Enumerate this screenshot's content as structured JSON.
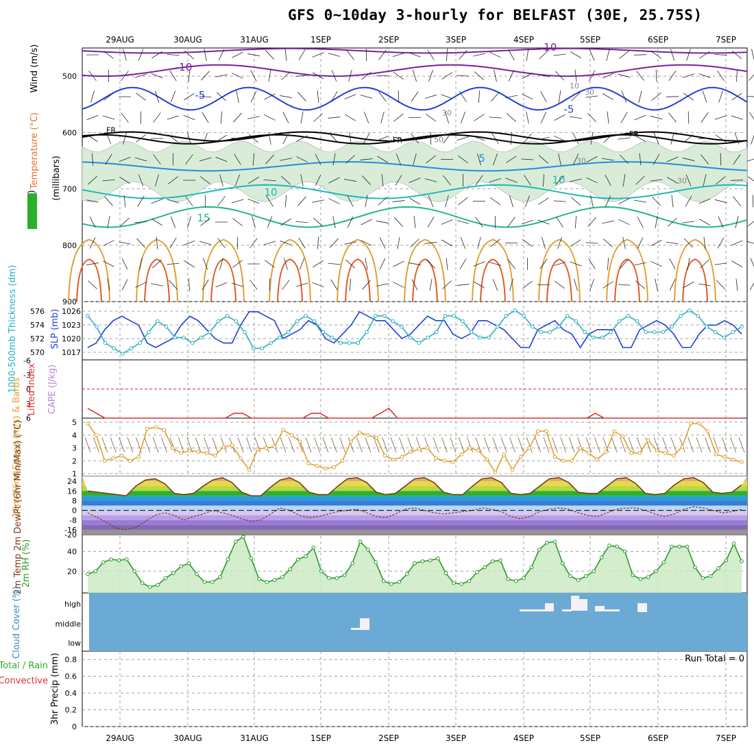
{
  "title": "GFS 0~10day 3-hourly for BELFAST (30E, 25.75S)",
  "date_labels": [
    "29AUG",
    "30AUG",
    "31AUG",
    "1SEP",
    "2SEP",
    "3SEP",
    "4SEP",
    "5SEP",
    "6SEP",
    "7SEP"
  ],
  "colors": {
    "grid": "#a0a0a0",
    "rh_fill": "#d8ecd8",
    "rh_dark": "#9aa69a",
    "temp_purple": "#7a1fa2",
    "temp_blue": "#1f3fd6",
    "temp_lightblue": "#1f8fe0",
    "temp_teal": "#1fb8b8",
    "temp_green": "#1fb885",
    "temp_orange": "#e0a030",
    "temp_red": "#e05a20",
    "slp": "#1f3fd6",
    "thickness": "#2ab0c0",
    "lifted": "#e03030",
    "cape": "#c080e0",
    "wind10": "#e0a030",
    "rh2m": "#2a9a2a",
    "cloud_bg": "#6aaad4",
    "cloud_bar": "#f4f0f8",
    "precip_total": "#2ab02a",
    "precip_conv": "#e03030"
  },
  "chart_data": [
    {
      "type": "heatmap",
      "panel": "upper-air",
      "ylabel_wind": "Wind (m/s)",
      "ylabel_temp": "Temperature (°C)",
      "ylabel_rh": "RH (%)",
      "ylabel_units": "(millibars)",
      "y_ticks": [
        500,
        600,
        700,
        800,
        900
      ],
      "ylim": [
        900,
        450
      ],
      "isotherm_labels": [
        "-10",
        "-10",
        "-5",
        "-5",
        "FR",
        "FR",
        "FR",
        "5",
        "10",
        "10",
        "15"
      ],
      "rh_labels": [
        "10",
        "30",
        "30",
        "50",
        "30",
        "30"
      ]
    },
    {
      "type": "line",
      "panel": "slp-thickness",
      "ylabel_left": "1000-500mb Thickness (dm)",
      "ylabel_right": "SLP (mb)",
      "left_ticks": [
        "576",
        "574",
        "572",
        "570"
      ],
      "right_ticks": [
        "1026",
        "1023",
        "1020",
        "1017"
      ],
      "series": [
        {
          "name": "SLP (mb)",
          "values": [
            1018,
            1019,
            1022,
            1024,
            1025,
            1024,
            1023,
            1019,
            1018,
            1019,
            1020,
            1023,
            1025,
            1024,
            1022,
            1020,
            1019,
            1019,
            1023,
            1026,
            1026,
            1025,
            1024,
            1020,
            1021,
            1022,
            1024,
            1023,
            1020,
            1019,
            1021,
            1023,
            1026,
            1025,
            1024,
            1024,
            1022,
            1020,
            1021,
            1023,
            1025,
            1024,
            1024,
            1021,
            1020,
            1021,
            1024,
            1024,
            1023,
            1022,
            1020,
            1018,
            1018,
            1022,
            1023,
            1024,
            1022,
            1021,
            1018,
            1021,
            1022,
            1022,
            1022,
            1018,
            1018,
            1022,
            1023,
            1024,
            1023,
            1021,
            1018,
            1018,
            1021,
            1023,
            1023,
            1024,
            1023,
            1021
          ]
        },
        {
          "name": "1000-500mb Thickness (dm)",
          "values": [
            575,
            573,
            570,
            569,
            568,
            569,
            570,
            572,
            574,
            573,
            571,
            571,
            570,
            571,
            572,
            574,
            575,
            574,
            572,
            569,
            569,
            570,
            571,
            572,
            574,
            575,
            574,
            572,
            571,
            570,
            570,
            570,
            572,
            575,
            575,
            574,
            573,
            571,
            570,
            571,
            572,
            575,
            575,
            574,
            572,
            571,
            571,
            573,
            575,
            576,
            575,
            573,
            572,
            572,
            573,
            575,
            574,
            572,
            571,
            571,
            572,
            574,
            575,
            574,
            572,
            572,
            572,
            573,
            575,
            576,
            575,
            573,
            572,
            571,
            572,
            573
          ]
        }
      ]
    },
    {
      "type": "line",
      "panel": "lifted-cape",
      "ylabel_left": "Lifted Index",
      "ylabel_right": "CAPE (J/kg)",
      "y_ticks": [
        "-6",
        "-3",
        "0",
        "3",
        "6"
      ],
      "ylim": [
        -6,
        6
      ],
      "series": [
        {
          "name": "Lifted Index",
          "values": [
            4,
            5,
            6,
            6,
            6,
            6,
            6,
            6,
            6,
            6,
            6,
            6,
            6,
            6,
            6,
            6,
            6,
            5,
            5,
            6,
            6,
            6,
            6,
            6,
            6,
            6,
            5,
            5,
            6,
            6,
            6,
            6,
            6,
            6,
            5,
            4,
            6,
            6,
            6,
            6,
            6,
            6,
            6,
            6,
            6,
            6,
            6,
            6,
            6,
            6,
            6,
            6,
            6,
            6,
            6,
            6,
            6,
            6,
            6,
            5,
            6,
            6,
            6,
            6,
            6,
            6,
            6,
            6,
            6,
            6,
            6,
            6,
            6,
            6,
            6,
            6,
            6
          ]
        }
      ]
    },
    {
      "type": "line",
      "panel": "wind10m",
      "ylabel": "10m Wind Speed (m/s) & Barbs",
      "y_ticks": [
        "5",
        "4",
        "3",
        "2",
        "1"
      ],
      "ylim": [
        1,
        5
      ],
      "series": [
        {
          "name": "10m Wind Speed",
          "values": [
            4.9,
            4.0,
            2.0,
            2.2,
            2.4,
            2.0,
            2.3,
            4.5,
            4.6,
            4.4,
            3.0,
            2.6,
            2.8,
            2.7,
            2.6,
            2.4,
            3.1,
            3.2,
            2.2,
            1.3,
            2.9,
            3.0,
            3.1,
            4.4,
            4.0,
            3.5,
            1.8,
            1.6,
            1.4,
            1.5,
            2.0,
            3.5,
            4.2,
            4.0,
            3.8,
            2.4,
            2.1,
            2.3,
            2.7,
            2.9,
            3.0,
            2.2,
            2.0,
            1.9,
            2.5,
            3.0,
            2.8,
            2.1,
            1.1,
            2.5,
            1.3,
            2.3,
            3.0,
            4.3,
            4.3,
            2.3,
            2.0,
            2.0,
            3.0,
            2.6,
            2.1,
            2.7,
            4.3,
            3.9,
            2.6,
            2.6,
            3.6,
            2.8,
            2.6,
            2.4,
            3.1,
            4.9,
            4.9,
            4.3,
            2.5,
            2.3,
            2.1,
            1.9
          ]
        }
      ]
    },
    {
      "type": "area",
      "panel": "temp2m",
      "ylabel": "2m Temp 2m DewPt (6hr Min/Max) (°C)",
      "y_ticks": [
        "24",
        "16",
        "8",
        "0",
        "-8",
        "-16",
        "-20"
      ],
      "ylim": [
        -20,
        28
      ],
      "series": [
        {
          "name": "2m Temp",
          "values": [
            16,
            15,
            14,
            13,
            12,
            20,
            25,
            26,
            22,
            14,
            13,
            14,
            20,
            25,
            27,
            23,
            15,
            12,
            12,
            19,
            25,
            27,
            23,
            15,
            13,
            13,
            20,
            26,
            27,
            23,
            15,
            13,
            14,
            20,
            26,
            27,
            23,
            15,
            13,
            13,
            20,
            26,
            27,
            23,
            14,
            13,
            14,
            20,
            26,
            27,
            23,
            15,
            14,
            14,
            20,
            26,
            27,
            22,
            14,
            13,
            14,
            21,
            26,
            27,
            23,
            15,
            14,
            15,
            21
          ]
        },
        {
          "name": "2m DewPt",
          "values": [
            -2,
            -6,
            -10,
            -15,
            -16,
            -14,
            -9,
            -4,
            -2,
            -4,
            -8,
            -5,
            -3,
            0,
            -2,
            -4,
            -7,
            -9,
            -8,
            -3,
            2,
            0,
            -4,
            -6,
            -5,
            -3,
            -1,
            0,
            1,
            -2,
            -5,
            -6,
            -3,
            1,
            2,
            0,
            -2,
            -3,
            -2,
            -1,
            0,
            2,
            1,
            -1,
            -5,
            -7,
            -5,
            -1,
            1,
            2,
            1,
            -2,
            -4,
            -5,
            -2,
            1,
            2,
            2,
            0,
            -3,
            -5,
            -3,
            1,
            3,
            2,
            0,
            -2,
            -1,
            1
          ]
        }
      ]
    },
    {
      "type": "area",
      "panel": "rh2m",
      "ylabel": "2m RH (%)",
      "y_ticks": [
        "40",
        "20"
      ],
      "ylim": [
        0,
        55
      ],
      "series": [
        {
          "name": "2m RH",
          "values": [
            17,
            20,
            29,
            32,
            31,
            32,
            20,
            8,
            4,
            6,
            13,
            18,
            25,
            28,
            17,
            9,
            9,
            14,
            32,
            50,
            55,
            33,
            12,
            9,
            11,
            14,
            22,
            32,
            35,
            44,
            20,
            13,
            13,
            16,
            28,
            50,
            42,
            29,
            10,
            7,
            9,
            17,
            28,
            30,
            31,
            33,
            18,
            8,
            7,
            10,
            19,
            24,
            30,
            31,
            12,
            10,
            13,
            24,
            42,
            49,
            50,
            28,
            15,
            11,
            15,
            20,
            34,
            46,
            45,
            40,
            16,
            12,
            14,
            20,
            29,
            45,
            45,
            45,
            24,
            13,
            15,
            23,
            31,
            48,
            30
          ]
        }
      ]
    },
    {
      "type": "bar",
      "panel": "cloud",
      "ylabel": "Cloud Cover (%)",
      "y_ticks": [
        "high",
        "middle",
        "low"
      ],
      "layers": [
        "high",
        "middle",
        "low"
      ]
    },
    {
      "type": "bar",
      "panel": "precip",
      "ylabel_total": "Total / Rain",
      "ylabel_conv": "Convective",
      "ylabel_units": "3hr Precip (mm)",
      "y_ticks": [
        "0.8",
        "0.6",
        "0.4",
        "0.2",
        "0"
      ],
      "ylim": [
        0,
        0.9
      ],
      "run_total": "Run Total = 0",
      "values": []
    }
  ]
}
